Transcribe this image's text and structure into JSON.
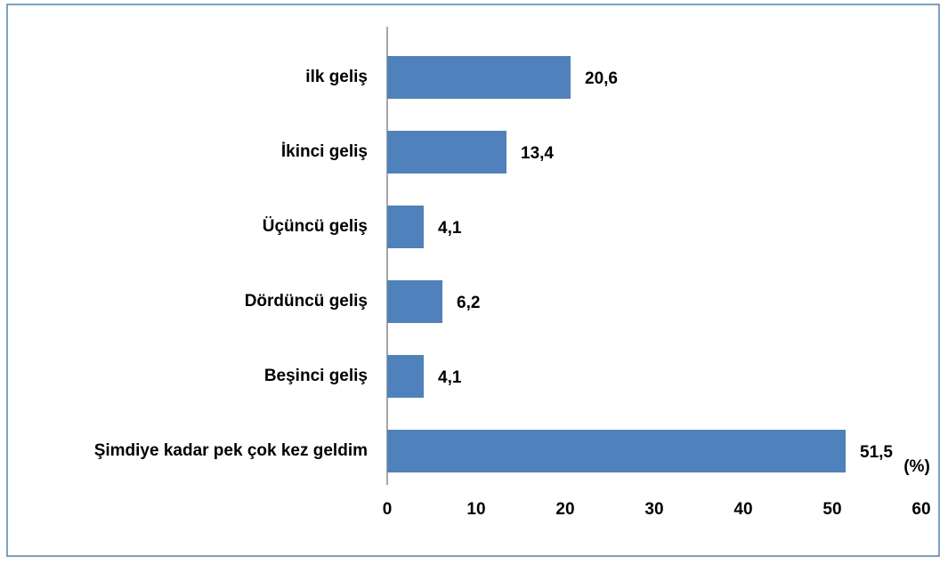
{
  "chart_data": {
    "type": "bar",
    "orientation": "horizontal",
    "categories": [
      "ilk geliş",
      "İkinci geliş",
      "Üçüncü geliş",
      "Dördüncü geliş",
      "Beşinci geliş",
      "Şimdiye kadar pek çok kez geldim"
    ],
    "values": [
      20.6,
      13.4,
      4.1,
      6.2,
      4.1,
      51.5
    ],
    "value_labels": [
      "20,6",
      "13,4",
      "4,1",
      "6,2",
      "4,1",
      "51,5"
    ],
    "color": "#4f81bd",
    "xlabel": "(%)",
    "xlim": [
      0,
      60
    ],
    "xticks": [
      0,
      10,
      20,
      30,
      40,
      50,
      60
    ]
  }
}
